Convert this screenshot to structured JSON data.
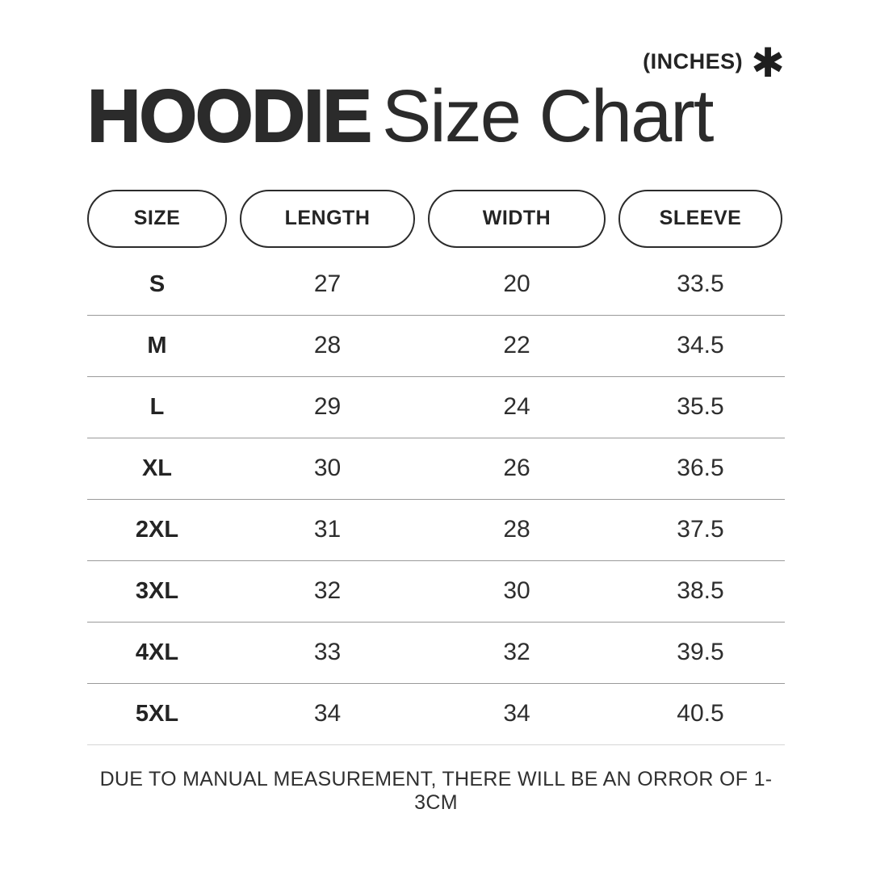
{
  "header": {
    "units_label": "(INCHES)",
    "asterisk_icon": "✱",
    "title_bold": "HOODIE",
    "title_regular": "Size Chart"
  },
  "table": {
    "columns": [
      "SIZE",
      "LENGTH",
      "WIDTH",
      "SLEEVE"
    ],
    "rows": [
      {
        "size": "S",
        "length": "27",
        "width": "20",
        "sleeve": "33.5"
      },
      {
        "size": "M",
        "length": "28",
        "width": "22",
        "sleeve": "34.5"
      },
      {
        "size": "L",
        "length": "29",
        "width": "24",
        "sleeve": "35.5"
      },
      {
        "size": "XL",
        "length": "30",
        "width": "26",
        "sleeve": "36.5"
      },
      {
        "size": "2XL",
        "length": "31",
        "width": "28",
        "sleeve": "37.5"
      },
      {
        "size": "3XL",
        "length": "32",
        "width": "30",
        "sleeve": "38.5"
      },
      {
        "size": "4XL",
        "length": "33",
        "width": "32",
        "sleeve": "39.5"
      },
      {
        "size": "5XL",
        "length": "34",
        "width": "34",
        "sleeve": "40.5"
      }
    ]
  },
  "footer": {
    "note": "DUE TO MANUAL MEASUREMENT, THERE WILL BE AN ORROR OF 1-3CM"
  },
  "colors": {
    "background": "#ffffff",
    "text": "#2b2b2b",
    "pill_border": "#2b2b2b",
    "divider": "#9a9a9a",
    "divider_last": "#d6d6d6"
  },
  "chart_data": {
    "type": "table",
    "title": "HOODIE Size Chart",
    "units": "INCHES",
    "columns": [
      "SIZE",
      "LENGTH",
      "WIDTH",
      "SLEEVE"
    ],
    "rows": [
      [
        "S",
        27,
        20,
        33.5
      ],
      [
        "M",
        28,
        22,
        34.5
      ],
      [
        "L",
        29,
        24,
        35.5
      ],
      [
        "XL",
        30,
        26,
        36.5
      ],
      [
        "2XL",
        31,
        28,
        37.5
      ],
      [
        "3XL",
        32,
        30,
        38.5
      ],
      [
        "4XL",
        33,
        32,
        39.5
      ],
      [
        "5XL",
        34,
        34,
        40.5
      ]
    ],
    "note": "DUE TO MANUAL MEASUREMENT, THERE WILL BE AN ORROR OF 1-3CM"
  }
}
